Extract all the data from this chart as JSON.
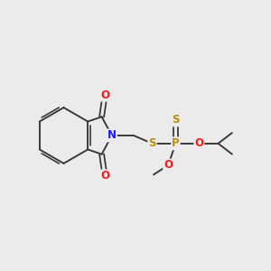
{
  "background_color": "#ebebeb",
  "bond_color": "#3a3a3a",
  "atom_colors": {
    "N": "#1a1aff",
    "O": "#ff1a1a",
    "S": "#b8900a",
    "P": "#b8900a",
    "C": "#3a3a3a"
  },
  "font_size_atom": 8.5,
  "font_size_group": 7.5
}
